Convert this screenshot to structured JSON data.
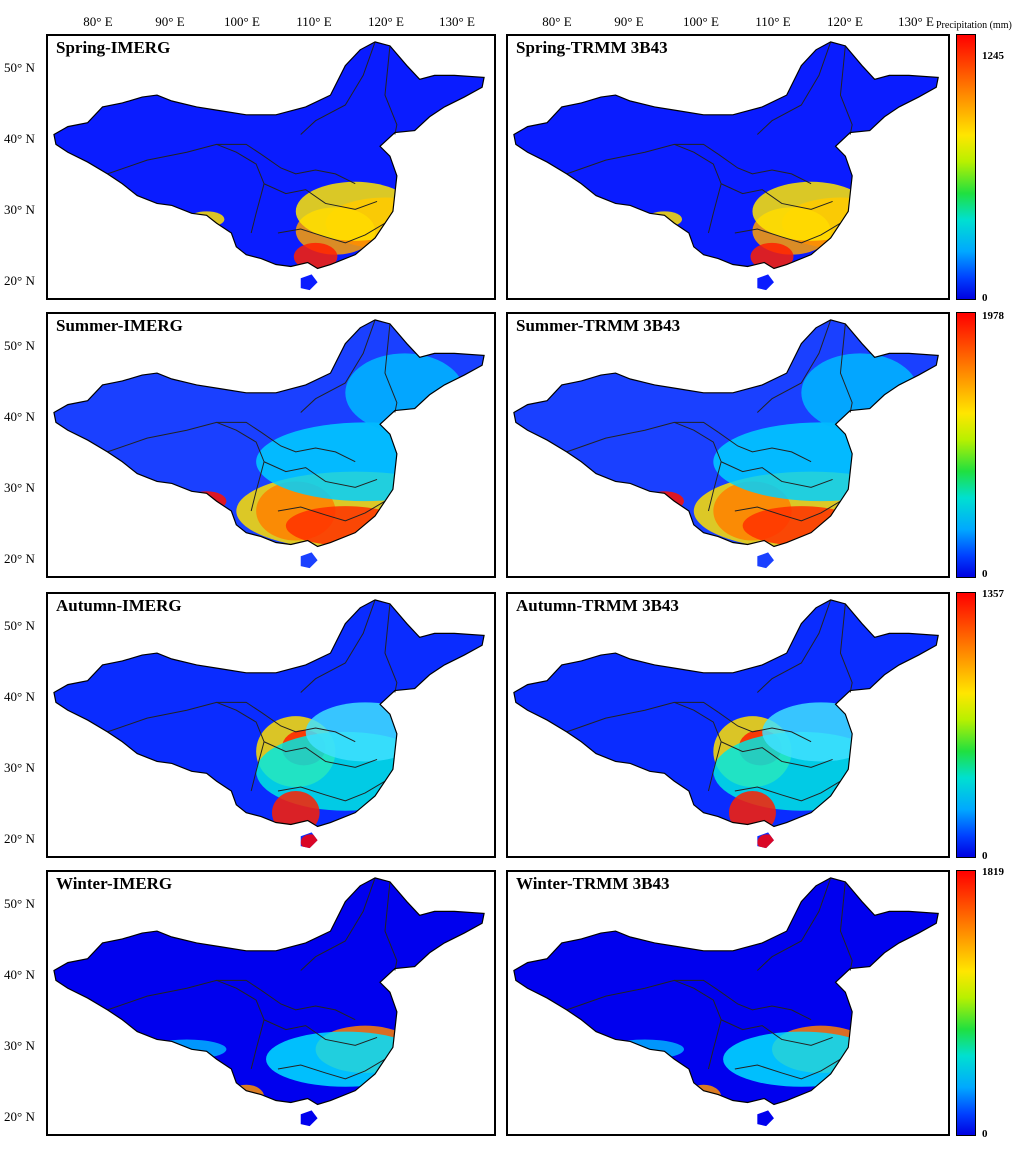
{
  "lon_ticks": [
    "80° E",
    "90° E",
    "100° E",
    "110° E",
    "120° E",
    "130° E"
  ],
  "lat_ticks": [
    "50° N",
    "40° N",
    "30° N",
    "20° N"
  ],
  "colorbar_title": "Precipitation (mm)",
  "seasons": [
    {
      "imerg_title": "Spring-IMERG",
      "trmm_title": "Spring-TRMM 3B43",
      "max": "1245",
      "min": "0"
    },
    {
      "imerg_title": "Summer-IMERG",
      "trmm_title": "Summer-TRMM 3B43",
      "max": "1978",
      "min": "0"
    },
    {
      "imerg_title": "Autumn-IMERG",
      "trmm_title": "Autumn-TRMM 3B43",
      "max": "1357",
      "min": "0"
    },
    {
      "imerg_title": "Winter-IMERG",
      "trmm_title": "Winter-TRMM 3B43",
      "max": "1819",
      "min": "0"
    }
  ],
  "colors": {
    "low": "#0000e0",
    "mid": "#00e0d0",
    "high": "#ff0000"
  }
}
